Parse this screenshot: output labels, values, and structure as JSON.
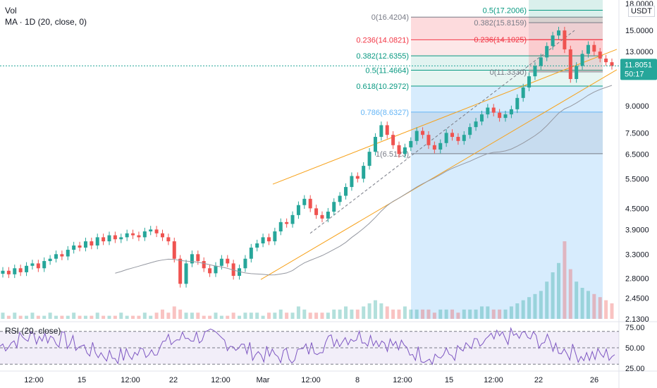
{
  "header": {
    "vol_label": "Vol",
    "ma_label": "MA · 1D (20, close, 0)"
  },
  "rsi_header": "RSI (20, close)",
  "currency": "USDT",
  "price_box": {
    "price": "11.8051",
    "countdown": "50:17",
    "value": 11.8051
  },
  "colors": {
    "up": "#26a69a",
    "down": "#ef5350",
    "rsi": "#7e57c2",
    "ma": "#9598a1",
    "fib_red": "#f23645",
    "fib_green": "#089981",
    "fib_blue": "#2962ff",
    "channel": "#f7a21b",
    "price_box": "#26a69a"
  },
  "chart_data": [
    {
      "type": "candlestick",
      "title": "",
      "y_scale": "log",
      "y_ticks": [
        "18.0000",
        "15.0000",
        "13.0000",
        "11.8051",
        "9.0000",
        "7.5000",
        "6.5000",
        "5.5000",
        "4.5000",
        "3.9000",
        "3.3000",
        "2.8000",
        "2.4500",
        "2.1300"
      ],
      "y_range": [
        2.13,
        18.0
      ],
      "x_ticks": [
        "12:00",
        "15",
        "12:00",
        "22",
        "12:00",
        "Mar",
        "12:00",
        "8",
        "12:00",
        "15",
        "12:00",
        "22",
        "26"
      ],
      "fib_retracement_top": {
        "levels": [
          {
            "label": "0(16.4204)",
            "value": 16.4204
          },
          {
            "label": "0.236(14.0821)",
            "value": 14.0821
          },
          {
            "label": "0.382(12.6355)",
            "value": 12.6355
          },
          {
            "label": "0.5(11.4664)",
            "value": 11.4664
          },
          {
            "label": "0.618(10.2972)",
            "value": 10.2972
          },
          {
            "label": "0.786(8.6327)",
            "value": 8.6327
          },
          {
            "label": "1(6.5123)",
            "value": 6.5123
          }
        ]
      },
      "fib_retracement_recent": {
        "levels": [
          {
            "label": "0.5(17.2006)",
            "value": 17.2006
          },
          {
            "label": "0.382(15.8159)",
            "value": 15.8159
          },
          {
            "label": "0.236(14.1025)",
            "value": 14.1025
          },
          {
            "label": "0(11.3330)",
            "value": 11.333
          }
        ]
      },
      "close_series": [
        2.95,
        2.88,
        3.0,
        2.92,
        3.05,
        3.1,
        3.0,
        3.15,
        3.2,
        3.3,
        3.25,
        3.4,
        3.5,
        3.45,
        3.6,
        3.5,
        3.7,
        3.6,
        3.75,
        3.65,
        3.7,
        3.8,
        3.75,
        3.7,
        3.85,
        3.9,
        3.8,
        3.7,
        3.6,
        3.2,
        2.7,
        3.1,
        3.3,
        3.15,
        3.0,
        2.9,
        3.05,
        3.2,
        3.1,
        2.85,
        3.0,
        3.2,
        3.45,
        3.55,
        3.7,
        3.6,
        3.85,
        4.1,
        4.05,
        4.3,
        4.6,
        4.8,
        4.5,
        4.3,
        4.2,
        4.4,
        4.7,
        4.9,
        5.2,
        5.6,
        5.5,
        6.0,
        6.6,
        7.3,
        7.9,
        7.4,
        6.9,
        6.5,
        6.8,
        7.1,
        7.6,
        7.4,
        6.9,
        6.7,
        7.0,
        7.5,
        7.3,
        7.1,
        7.4,
        7.8,
        8.1,
        8.5,
        8.9,
        8.6,
        8.3,
        8.5,
        8.8,
        9.5,
        10.2,
        11.0,
        11.8,
        12.5,
        13.5,
        14.5,
        15.0,
        13.2,
        10.8,
        11.8,
        12.8,
        13.6,
        13.0,
        12.4,
        12.1,
        11.8051
      ],
      "volume_series": [
        2,
        1,
        2,
        1,
        1,
        2,
        1,
        1,
        2,
        1,
        1,
        1,
        2,
        1,
        1,
        1,
        2,
        1,
        1,
        1,
        2,
        1,
        1,
        1,
        2,
        1,
        2,
        3,
        2,
        4,
        3,
        2,
        2,
        2,
        1,
        1,
        2,
        1,
        1,
        2,
        1,
        2,
        2,
        2,
        1,
        2,
        2,
        3,
        2,
        2,
        4,
        3,
        2,
        2,
        2,
        2,
        3,
        3,
        4,
        3,
        3,
        4,
        5,
        6,
        5,
        4,
        3,
        3,
        4,
        3,
        3,
        3,
        3,
        2,
        3,
        3,
        3,
        2,
        3,
        3,
        3,
        4,
        4,
        3,
        3,
        3,
        4,
        5,
        6,
        7,
        8,
        9,
        12,
        15,
        18,
        25,
        16,
        12,
        10,
        9,
        8,
        7,
        6,
        5
      ],
      "rsi": {
        "ticks": [
          "75.00",
          "50.00",
          "25.00"
        ],
        "overbought": 70,
        "oversold": 30
      }
    }
  ]
}
